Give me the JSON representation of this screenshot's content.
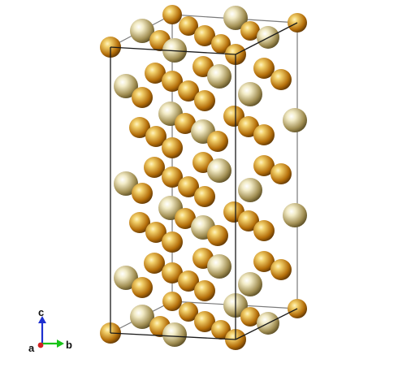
{
  "palette": {
    "background": "#ffffff",
    "cell_edge": "#1a1a1a",
    "cell_edge_far": "#7a7a7a",
    "gold_light": "#f1cf6a",
    "gold_dark": "#b56f0a",
    "gold_rim": "#5a3303",
    "khaki_light": "#f2ebc6",
    "khaki_dark": "#a28f53",
    "khaki_rim": "#574a22",
    "axis_a": "#d42020",
    "axis_b": "#19c419",
    "axis_c": "#1d2fd0"
  },
  "axes": {
    "a": "a",
    "b": "b",
    "c": "c"
  }
}
